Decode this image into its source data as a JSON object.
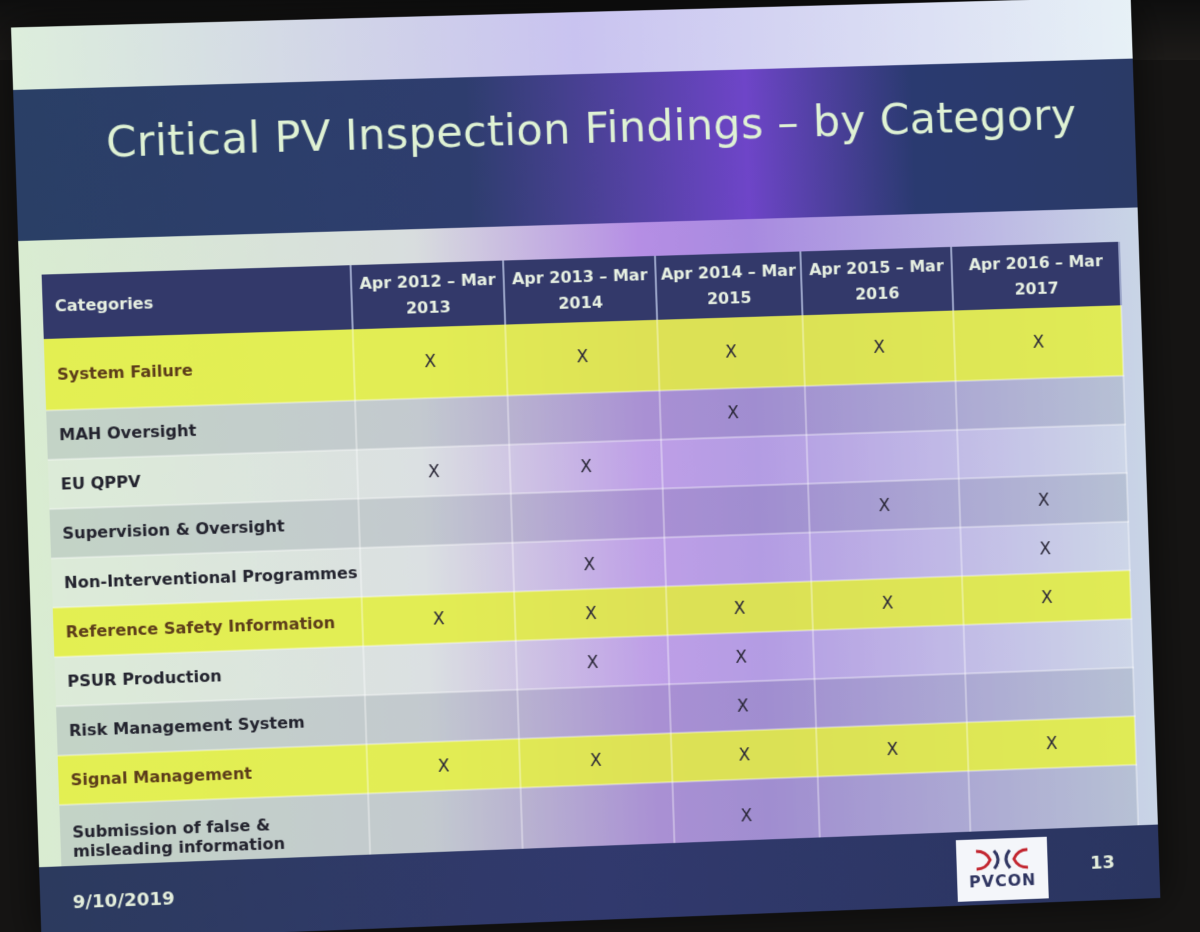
{
  "slide": {
    "title": "Critical PV Inspection Findings – by Category",
    "date": "9/10/2019",
    "page_number": "13",
    "logo_text": "PVCON"
  },
  "table": {
    "headers": [
      "Categories",
      "Apr 2012 – Mar 2013",
      "Apr 2013 – Mar 2014",
      "Apr 2014 – Mar 2015",
      "Apr 2015 – Mar 2016",
      "Apr 2016 – Mar 2017"
    ],
    "rows": [
      {
        "category": "System Failure",
        "highlight": true,
        "marks": [
          "X",
          "X",
          "X",
          "X",
          "X"
        ]
      },
      {
        "category": "MAH Oversight",
        "highlight": false,
        "marks": [
          "",
          "",
          "X",
          "",
          ""
        ]
      },
      {
        "category": "EU QPPV",
        "highlight": false,
        "marks": [
          "X",
          "X",
          "",
          "",
          ""
        ]
      },
      {
        "category": "Supervision & Oversight",
        "highlight": false,
        "marks": [
          "",
          "",
          "",
          "X",
          "X"
        ]
      },
      {
        "category": "Non-Interventional Programmes",
        "highlight": false,
        "marks": [
          "",
          "X",
          "",
          "",
          "X"
        ]
      },
      {
        "category": "Reference Safety Information",
        "highlight": true,
        "marks": [
          "X",
          "X",
          "X",
          "X",
          "X"
        ]
      },
      {
        "category": "PSUR Production",
        "highlight": false,
        "marks": [
          "",
          "X",
          "X",
          "",
          ""
        ]
      },
      {
        "category": "Risk Management System",
        "highlight": false,
        "marks": [
          "",
          "",
          "X",
          "",
          ""
        ]
      },
      {
        "category": "Signal Management",
        "highlight": true,
        "marks": [
          "X",
          "X",
          "X",
          "X",
          "X"
        ]
      },
      {
        "category": "Submission of false & misleading information",
        "highlight": false,
        "marks": [
          "",
          "",
          "X",
          "",
          ""
        ]
      }
    ]
  }
}
